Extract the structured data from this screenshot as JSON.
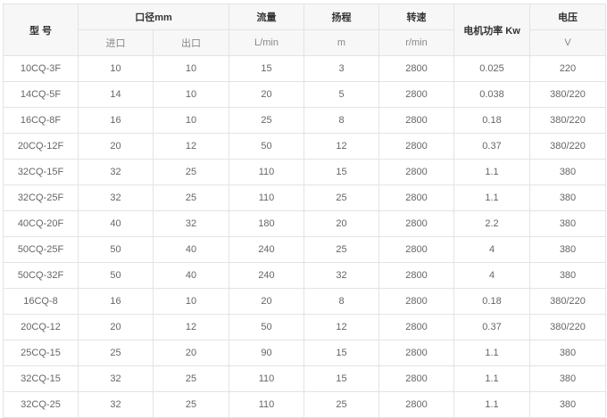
{
  "header": {
    "model": "型 号",
    "diameter": "口径mm",
    "inlet": "进口",
    "outlet": "出口",
    "flow": "流量",
    "flow_unit": "L/min",
    "head": "扬程",
    "head_unit": "m",
    "speed": "转速",
    "speed_unit": "r/min",
    "power": "电机功率 Kw",
    "voltage": "电压",
    "voltage_unit": "V"
  },
  "rows": [
    [
      "10CQ-3F",
      "10",
      "10",
      "15",
      "3",
      "2800",
      "0.025",
      "220"
    ],
    [
      "14CQ-5F",
      "14",
      "10",
      "20",
      "5",
      "2800",
      "0.038",
      "380/220"
    ],
    [
      "16CQ-8F",
      "16",
      "10",
      "25",
      "8",
      "2800",
      "0.18",
      "380/220"
    ],
    [
      "20CQ-12F",
      "20",
      "12",
      "50",
      "12",
      "2800",
      "0.37",
      "380/220"
    ],
    [
      "32CQ-15F",
      "32",
      "25",
      "110",
      "15",
      "2800",
      "1.1",
      "380"
    ],
    [
      "32CQ-25F",
      "32",
      "25",
      "110",
      "25",
      "2800",
      "1.1",
      "380"
    ],
    [
      "40CQ-20F",
      "40",
      "32",
      "180",
      "20",
      "2800",
      "2.2",
      "380"
    ],
    [
      "50CQ-25F",
      "50",
      "40",
      "240",
      "25",
      "2800",
      "4",
      "380"
    ],
    [
      "50CQ-32F",
      "50",
      "40",
      "240",
      "32",
      "2800",
      "4",
      "380"
    ],
    [
      "16CQ-8",
      "16",
      "10",
      "20",
      "8",
      "2800",
      "0.18",
      "380/220"
    ],
    [
      "20CQ-12",
      "20",
      "12",
      "50",
      "12",
      "2800",
      "0.37",
      "380/220"
    ],
    [
      "25CQ-15",
      "25",
      "20",
      "90",
      "15",
      "2800",
      "1.1",
      "380"
    ],
    [
      "32CQ-15",
      "32",
      "25",
      "110",
      "15",
      "2800",
      "1.1",
      "380"
    ],
    [
      "32CQ-25",
      "32",
      "25",
      "110",
      "25",
      "2800",
      "1.1",
      "380"
    ]
  ]
}
